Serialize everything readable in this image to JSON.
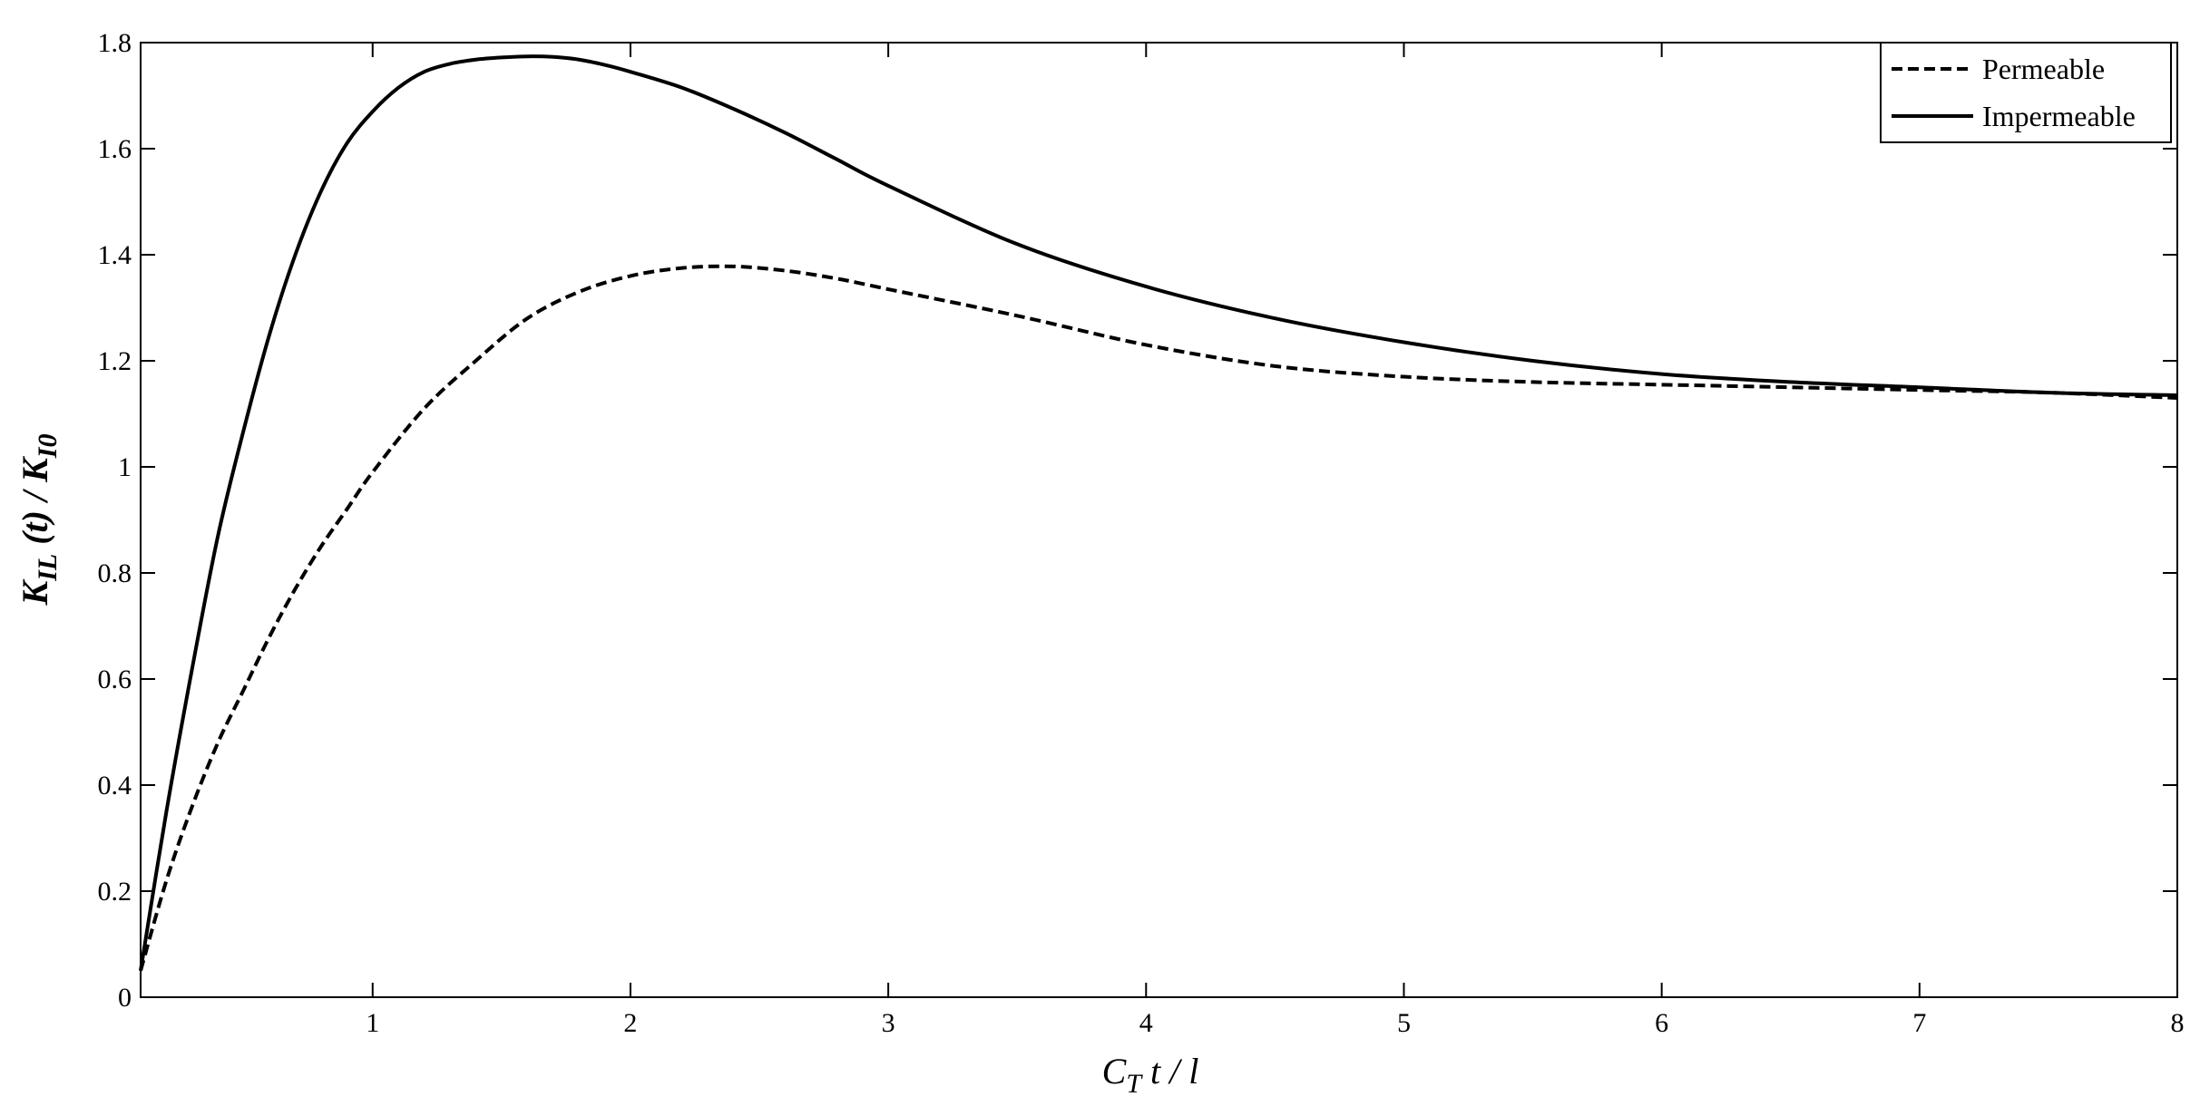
{
  "chart_data": {
    "type": "line",
    "title": "",
    "xlabel": {
      "main": "C",
      "sub": "T",
      "rest": " t / l"
    },
    "ylabel": {
      "main1": "K",
      "sub1": "IL",
      "mid": " (t) / K",
      "sub2": "I0"
    },
    "xlim": [
      0.1,
      8
    ],
    "ylim": [
      0,
      1.8
    ],
    "xticks": [
      1,
      2,
      3,
      4,
      5,
      6,
      7,
      8
    ],
    "xtick_labels": [
      "1",
      "2",
      "3",
      "4",
      "5",
      "6",
      "7",
      "8"
    ],
    "yticks": [
      0,
      0.2,
      0.4,
      0.6,
      0.8,
      1.0,
      1.2,
      1.4,
      1.6,
      1.8
    ],
    "ytick_labels": [
      "0",
      "0.2",
      "0.4",
      "0.6",
      "0.8",
      "1",
      "1.2",
      "1.4",
      "1.6",
      "1.8"
    ],
    "grid": false,
    "legend_position": "top-right",
    "series": [
      {
        "name": "Permeable",
        "style": "dashed",
        "color": "#000000",
        "x": [
          0.1,
          0.2,
          0.3,
          0.4,
          0.5,
          0.6,
          0.7,
          0.8,
          0.9,
          1.0,
          1.2,
          1.4,
          1.6,
          1.8,
          2.0,
          2.2,
          2.4,
          2.6,
          2.8,
          3.0,
          3.5,
          4.0,
          4.5,
          5.0,
          5.5,
          6.0,
          6.5,
          7.0,
          7.5,
          8.0
        ],
        "y": [
          0.05,
          0.22,
          0.36,
          0.48,
          0.58,
          0.68,
          0.77,
          0.85,
          0.92,
          0.99,
          1.11,
          1.2,
          1.28,
          1.33,
          1.36,
          1.375,
          1.378,
          1.37,
          1.355,
          1.335,
          1.285,
          1.23,
          1.19,
          1.17,
          1.16,
          1.155,
          1.15,
          1.145,
          1.14,
          1.13
        ]
      },
      {
        "name": "Impermeable",
        "style": "solid",
        "color": "#000000",
        "x": [
          0.1,
          0.2,
          0.3,
          0.4,
          0.5,
          0.6,
          0.7,
          0.8,
          0.9,
          1.0,
          1.1,
          1.2,
          1.3,
          1.4,
          1.5,
          1.6,
          1.7,
          1.8,
          1.9,
          2.0,
          2.2,
          2.4,
          2.6,
          2.8,
          3.0,
          3.5,
          4.0,
          4.5,
          5.0,
          5.5,
          6.0,
          6.5,
          7.0,
          7.5,
          8.0
        ],
        "y": [
          0.05,
          0.35,
          0.62,
          0.87,
          1.07,
          1.25,
          1.4,
          1.52,
          1.61,
          1.67,
          1.715,
          1.745,
          1.76,
          1.768,
          1.772,
          1.774,
          1.773,
          1.768,
          1.758,
          1.745,
          1.715,
          1.675,
          1.63,
          1.58,
          1.53,
          1.42,
          1.34,
          1.28,
          1.235,
          1.2,
          1.175,
          1.16,
          1.15,
          1.14,
          1.135
        ]
      }
    ]
  }
}
